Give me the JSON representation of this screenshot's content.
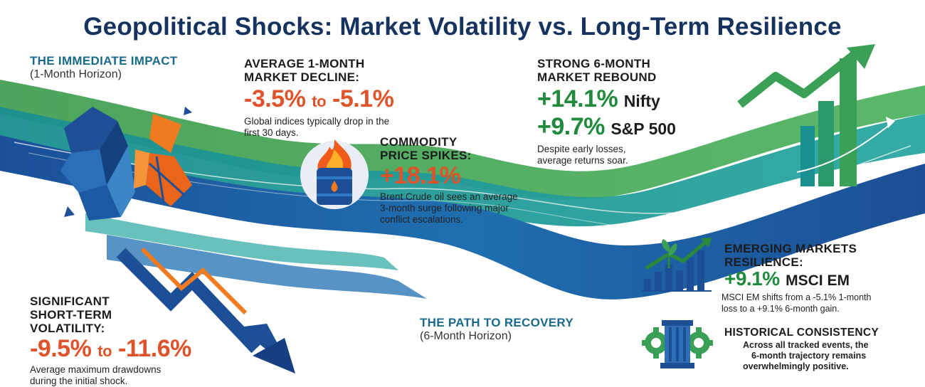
{
  "title": "Geopolitical Shocks: Market Volatility vs. Long-Term Resilience",
  "immediate": {
    "heading": "THE IMMEDIATE IMPACT",
    "sub": "(1-Month Horizon)"
  },
  "decline": {
    "heading_line1": "AVERAGE 1-MONTH",
    "heading_line2": "MARKET DECLINE:",
    "from": "-3.5%",
    "to_word": "to",
    "to": "-5.1%",
    "desc_line1": "Global indices typically drop in the",
    "desc_line2": "first 30 days."
  },
  "commodity": {
    "heading_line1": "COMMODITY",
    "heading_line2": "PRICE SPIKES:",
    "value": "+18.1%",
    "desc_line1": "Brent Crude oil sees an average",
    "desc_line2": "3-month surge following major",
    "desc_line3": "conflict escalations."
  },
  "rebound": {
    "heading_line1": "STRONG 6-MONTH",
    "heading_line2": "MARKET REBOUND",
    "nifty_value": "+14.1%",
    "nifty_label": "Nifty",
    "sp_value": "+9.7%",
    "sp_label": "S&P 500",
    "desc_line1": "Despite early losses,",
    "desc_line2": "average returns soar."
  },
  "volatility": {
    "heading_line1": "SIGNIFICANT",
    "heading_line2": "SHORT-TERM",
    "heading_line3": "VOLATILITY:",
    "from": "-9.5%",
    "to_word": "to",
    "to": "-11.6%",
    "desc_line1": "Average maximum drawdowns",
    "desc_line2": "during the initial shock."
  },
  "recovery": {
    "heading": "THE PATH TO RECOVERY",
    "sub": "(6-Month Horizon)"
  },
  "emerging": {
    "heading_line1": "EMERGING MARKETS",
    "heading_line2": "RESILIENCE:",
    "value": "+9.1%",
    "label": "MSCI EM",
    "desc_line1": "MSCI EM shifts from a -5.1% 1-month",
    "desc_line2": "loss to a +9.1% 6-month gain."
  },
  "consistency": {
    "heading": "HISTORICAL CONSISTENCY",
    "desc_line1": "Across all tracked events, the",
    "desc_line2": "6-month trajectory remains",
    "desc_line3": "overwhelmingly positive."
  },
  "colors": {
    "title": "#16335f",
    "accent_red": "#e0522a",
    "accent_green": "#1f8a3c",
    "wave_blue": "#1f5fa8",
    "wave_teal": "#1a9a9a",
    "wave_green": "#3aa055"
  },
  "icons": [
    "shattered-globe-icon",
    "oil-barrel-fire-icon",
    "rising-arrow-bars-icon",
    "falling-arrow-icon",
    "plant-growth-chart-icon",
    "pillar-gear-icon"
  ]
}
